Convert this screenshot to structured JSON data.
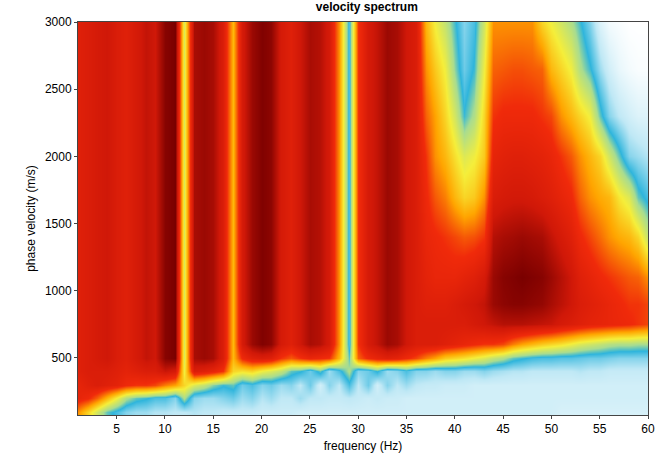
{
  "chart_data": {
    "type": "heatmap",
    "title": "velocity spectrum",
    "x_label": "frequency (Hz)",
    "y_label": "phase velocity (m/s)",
    "grid": false,
    "xlim": [
      1,
      60
    ],
    "ylim": [
      75,
      3000
    ],
    "xticks": [
      5,
      10,
      15,
      20,
      25,
      30,
      35,
      40,
      45,
      50,
      55,
      60
    ],
    "yticks": [
      500,
      1000,
      1500,
      2000,
      2500,
      3000
    ],
    "x": [
      1,
      2,
      3,
      4,
      5,
      6,
      7,
      8,
      9,
      10,
      11,
      12,
      13,
      14,
      15,
      16,
      17,
      18,
      19,
      20,
      21,
      22,
      23,
      24,
      25,
      26,
      27,
      28,
      29,
      30,
      31,
      32,
      33,
      34,
      35,
      36,
      37,
      38,
      39,
      40,
      41,
      42,
      43,
      44,
      45,
      46,
      47,
      48,
      49,
      50,
      51,
      52,
      53,
      54,
      55,
      56,
      57,
      58,
      59,
      60
    ],
    "y": [
      100,
      200,
      300,
      400,
      500,
      600,
      750,
      900,
      1100,
      1400,
      1700,
      2000,
      2300,
      2650,
      3000
    ],
    "z": [
      [
        0.6,
        0.5,
        0.4,
        0.3,
        0.25,
        0.2,
        0.18,
        0.18,
        0.16,
        0.16,
        0.15,
        0.15,
        0.16,
        0.15,
        0.15,
        0.14,
        0.14,
        0.14,
        0.14,
        0.13,
        0.13,
        0.13,
        0.13,
        0.12,
        0.12,
        0.12,
        0.12,
        0.12,
        0.12,
        0.12,
        0.12,
        0.12,
        0.12,
        0.12,
        0.12,
        0.12,
        0.12,
        0.12,
        0.12,
        0.12,
        0.12,
        0.12,
        0.12,
        0.12,
        0.12,
        0.12,
        0.12,
        0.12,
        0.12,
        0.12,
        0.11,
        0.11,
        0.11,
        0.11,
        0.11,
        0.11,
        0.11,
        0.11,
        0.11,
        0.11
      ],
      [
        0.75,
        0.72,
        0.65,
        0.55,
        0.45,
        0.35,
        0.3,
        0.28,
        0.25,
        0.25,
        0.2,
        0.35,
        0.2,
        0.18,
        0.18,
        0.2,
        0.22,
        0.18,
        0.2,
        0.16,
        0.18,
        0.15,
        0.15,
        0.18,
        0.15,
        0.15,
        0.14,
        0.14,
        0.15,
        0.14,
        0.13,
        0.14,
        0.13,
        0.13,
        0.12,
        0.12,
        0.12,
        0.12,
        0.12,
        0.12,
        0.12,
        0.12,
        0.12,
        0.12,
        0.12,
        0.12,
        0.12,
        0.12,
        0.12,
        0.12,
        0.12,
        0.12,
        0.12,
        0.12,
        0.12,
        0.12,
        0.12,
        0.12,
        0.12,
        0.12
      ],
      [
        0.75,
        0.78,
        0.8,
        0.78,
        0.76,
        0.72,
        0.7,
        0.7,
        0.68,
        0.62,
        0.58,
        0.5,
        0.42,
        0.38,
        0.32,
        0.28,
        0.3,
        0.22,
        0.25,
        0.2,
        0.22,
        0.18,
        0.2,
        0.15,
        0.22,
        0.12,
        0.2,
        0.15,
        0.25,
        0.15,
        0.22,
        0.12,
        0.2,
        0.15,
        0.18,
        0.15,
        0.14,
        0.14,
        0.13,
        0.13,
        0.13,
        0.12,
        0.12,
        0.12,
        0.12,
        0.12,
        0.12,
        0.12,
        0.12,
        0.12,
        0.12,
        0.12,
        0.12,
        0.12,
        0.12,
        0.12,
        0.12,
        0.12,
        0.12,
        0.12
      ],
      [
        0.78,
        0.8,
        0.8,
        0.8,
        0.78,
        0.76,
        0.78,
        0.8,
        0.8,
        0.85,
        0.82,
        0.45,
        0.8,
        0.78,
        0.75,
        0.7,
        0.5,
        0.48,
        0.5,
        0.45,
        0.42,
        0.38,
        0.3,
        0.28,
        0.22,
        0.3,
        0.18,
        0.25,
        0.35,
        0.2,
        0.22,
        0.28,
        0.18,
        0.2,
        0.25,
        0.2,
        0.2,
        0.18,
        0.2,
        0.2,
        0.18,
        0.18,
        0.2,
        0.18,
        0.17,
        0.16,
        0.16,
        0.15,
        0.15,
        0.15,
        0.15,
        0.15,
        0.16,
        0.15,
        0.15,
        0.14,
        0.14,
        0.14,
        0.14,
        0.14
      ],
      [
        0.78,
        0.8,
        0.82,
        0.84,
        0.8,
        0.78,
        0.82,
        0.86,
        0.84,
        0.95,
        0.97,
        0.42,
        0.9,
        0.92,
        0.9,
        0.8,
        0.55,
        0.72,
        0.78,
        0.8,
        0.78,
        0.7,
        0.66,
        0.7,
        0.74,
        0.72,
        0.7,
        0.55,
        0.3,
        0.65,
        0.72,
        0.75,
        0.78,
        0.76,
        0.72,
        0.68,
        0.62,
        0.58,
        0.52,
        0.5,
        0.48,
        0.45,
        0.42,
        0.38,
        0.35,
        0.3,
        0.28,
        0.26,
        0.25,
        0.25,
        0.24,
        0.24,
        0.23,
        0.22,
        0.22,
        0.21,
        0.2,
        0.2,
        0.2,
        0.2
      ],
      [
        0.78,
        0.8,
        0.82,
        0.84,
        0.8,
        0.78,
        0.82,
        0.86,
        0.84,
        0.95,
        0.97,
        0.42,
        0.9,
        0.92,
        0.9,
        0.8,
        0.55,
        0.82,
        0.92,
        0.96,
        0.94,
        0.82,
        0.78,
        0.84,
        0.9,
        0.88,
        0.82,
        0.6,
        0.25,
        0.7,
        0.82,
        0.86,
        0.92,
        0.9,
        0.84,
        0.8,
        0.8,
        0.8,
        0.78,
        0.76,
        0.74,
        0.72,
        0.7,
        0.7,
        0.68,
        0.62,
        0.58,
        0.55,
        0.52,
        0.5,
        0.48,
        0.45,
        0.42,
        0.4,
        0.38,
        0.36,
        0.35,
        0.35,
        0.34,
        0.34
      ],
      [
        0.78,
        0.8,
        0.82,
        0.84,
        0.8,
        0.78,
        0.82,
        0.86,
        0.84,
        0.95,
        0.97,
        0.42,
        0.9,
        0.92,
        0.9,
        0.8,
        0.55,
        0.82,
        0.92,
        0.96,
        0.94,
        0.82,
        0.78,
        0.84,
        0.9,
        0.88,
        0.82,
        0.6,
        0.25,
        0.7,
        0.82,
        0.86,
        0.92,
        0.9,
        0.84,
        0.8,
        0.8,
        0.8,
        0.8,
        0.8,
        0.8,
        0.82,
        0.84,
        0.86,
        0.88,
        0.88,
        0.88,
        0.87,
        0.86,
        0.85,
        0.82,
        0.8,
        0.78,
        0.76,
        0.75,
        0.74,
        0.73,
        0.72,
        0.7,
        0.68
      ],
      [
        0.78,
        0.8,
        0.82,
        0.84,
        0.8,
        0.78,
        0.82,
        0.86,
        0.84,
        0.95,
        0.97,
        0.42,
        0.9,
        0.92,
        0.9,
        0.8,
        0.55,
        0.82,
        0.92,
        0.96,
        0.94,
        0.82,
        0.78,
        0.84,
        0.9,
        0.88,
        0.82,
        0.6,
        0.25,
        0.7,
        0.82,
        0.86,
        0.92,
        0.9,
        0.84,
        0.8,
        0.78,
        0.78,
        0.78,
        0.8,
        0.82,
        0.84,
        0.86,
        0.92,
        0.94,
        0.95,
        0.95,
        0.94,
        0.93,
        0.9,
        0.87,
        0.84,
        0.8,
        0.78,
        0.76,
        0.74,
        0.72,
        0.7,
        0.7,
        0.68
      ],
      [
        0.78,
        0.8,
        0.82,
        0.84,
        0.8,
        0.78,
        0.82,
        0.86,
        0.84,
        0.95,
        0.97,
        0.42,
        0.9,
        0.92,
        0.9,
        0.8,
        0.55,
        0.82,
        0.92,
        0.96,
        0.94,
        0.82,
        0.78,
        0.84,
        0.9,
        0.88,
        0.82,
        0.6,
        0.25,
        0.7,
        0.82,
        0.86,
        0.92,
        0.9,
        0.84,
        0.8,
        0.76,
        0.74,
        0.74,
        0.74,
        0.76,
        0.78,
        0.82,
        0.92,
        0.95,
        0.96,
        0.97,
        0.96,
        0.95,
        0.92,
        0.88,
        0.84,
        0.78,
        0.75,
        0.72,
        0.7,
        0.68,
        0.66,
        0.65,
        0.6
      ],
      [
        0.78,
        0.8,
        0.82,
        0.84,
        0.8,
        0.78,
        0.82,
        0.86,
        0.84,
        0.95,
        0.97,
        0.42,
        0.9,
        0.92,
        0.9,
        0.8,
        0.55,
        0.82,
        0.92,
        0.96,
        0.94,
        0.82,
        0.78,
        0.84,
        0.9,
        0.88,
        0.82,
        0.6,
        0.25,
        0.7,
        0.82,
        0.86,
        0.92,
        0.9,
        0.84,
        0.8,
        0.74,
        0.72,
        0.7,
        0.68,
        0.66,
        0.67,
        0.7,
        0.88,
        0.9,
        0.91,
        0.92,
        0.91,
        0.9,
        0.86,
        0.82,
        0.78,
        0.72,
        0.68,
        0.64,
        0.6,
        0.57,
        0.55,
        0.5,
        0.38
      ],
      [
        0.78,
        0.8,
        0.82,
        0.84,
        0.8,
        0.78,
        0.82,
        0.86,
        0.84,
        0.95,
        0.97,
        0.42,
        0.9,
        0.92,
        0.9,
        0.8,
        0.55,
        0.82,
        0.92,
        0.96,
        0.94,
        0.82,
        0.78,
        0.84,
        0.9,
        0.88,
        0.82,
        0.6,
        0.25,
        0.7,
        0.82,
        0.86,
        0.92,
        0.9,
        0.84,
        0.8,
        0.72,
        0.66,
        0.62,
        0.55,
        0.5,
        0.52,
        0.6,
        0.8,
        0.82,
        0.83,
        0.83,
        0.82,
        0.8,
        0.78,
        0.75,
        0.72,
        0.65,
        0.6,
        0.57,
        0.55,
        0.47,
        0.42,
        0.3,
        0.25
      ],
      [
        0.78,
        0.8,
        0.82,
        0.84,
        0.8,
        0.78,
        0.82,
        0.86,
        0.84,
        0.95,
        0.97,
        0.42,
        0.9,
        0.92,
        0.9,
        0.8,
        0.55,
        0.82,
        0.92,
        0.96,
        0.94,
        0.82,
        0.78,
        0.84,
        0.9,
        0.88,
        0.82,
        0.6,
        0.25,
        0.7,
        0.82,
        0.86,
        0.92,
        0.9,
        0.84,
        0.8,
        0.7,
        0.6,
        0.55,
        0.48,
        0.42,
        0.45,
        0.52,
        0.75,
        0.77,
        0.78,
        0.78,
        0.77,
        0.76,
        0.74,
        0.7,
        0.66,
        0.6,
        0.55,
        0.5,
        0.4,
        0.3,
        0.2,
        0.18,
        0.16
      ],
      [
        0.78,
        0.8,
        0.82,
        0.84,
        0.8,
        0.78,
        0.82,
        0.86,
        0.84,
        0.95,
        0.97,
        0.42,
        0.9,
        0.92,
        0.9,
        0.8,
        0.55,
        0.82,
        0.92,
        0.96,
        0.94,
        0.82,
        0.78,
        0.84,
        0.9,
        0.88,
        0.82,
        0.6,
        0.25,
        0.7,
        0.82,
        0.86,
        0.92,
        0.9,
        0.84,
        0.8,
        0.65,
        0.58,
        0.5,
        0.4,
        0.28,
        0.35,
        0.5,
        0.7,
        0.72,
        0.72,
        0.72,
        0.72,
        0.7,
        0.68,
        0.6,
        0.55,
        0.5,
        0.45,
        0.3,
        0.2,
        0.15,
        0.12,
        0.1,
        0.1
      ],
      [
        0.78,
        0.8,
        0.82,
        0.84,
        0.8,
        0.78,
        0.82,
        0.86,
        0.84,
        0.95,
        0.97,
        0.42,
        0.9,
        0.92,
        0.9,
        0.8,
        0.55,
        0.82,
        0.92,
        0.96,
        0.94,
        0.82,
        0.78,
        0.84,
        0.9,
        0.88,
        0.82,
        0.6,
        0.25,
        0.7,
        0.82,
        0.86,
        0.92,
        0.9,
        0.84,
        0.8,
        0.6,
        0.52,
        0.45,
        0.32,
        0.22,
        0.28,
        0.45,
        0.65,
        0.66,
        0.67,
        0.67,
        0.66,
        0.65,
        0.55,
        0.5,
        0.45,
        0.35,
        0.28,
        0.18,
        0.12,
        0.08,
        0.06,
        0.05,
        0.05
      ],
      [
        0.78,
        0.8,
        0.82,
        0.84,
        0.8,
        0.78,
        0.82,
        0.86,
        0.84,
        0.95,
        0.97,
        0.42,
        0.9,
        0.92,
        0.9,
        0.8,
        0.55,
        0.82,
        0.92,
        0.96,
        0.94,
        0.82,
        0.78,
        0.84,
        0.9,
        0.88,
        0.82,
        0.6,
        0.25,
        0.7,
        0.82,
        0.86,
        0.92,
        0.9,
        0.84,
        0.8,
        0.55,
        0.45,
        0.38,
        0.28,
        0.2,
        0.25,
        0.4,
        0.6,
        0.6,
        0.6,
        0.6,
        0.6,
        0.5,
        0.45,
        0.4,
        0.35,
        0.28,
        0.2,
        0.1,
        0.06,
        0.05,
        0.04,
        0.04,
        0.04
      ]
    ]
  }
}
